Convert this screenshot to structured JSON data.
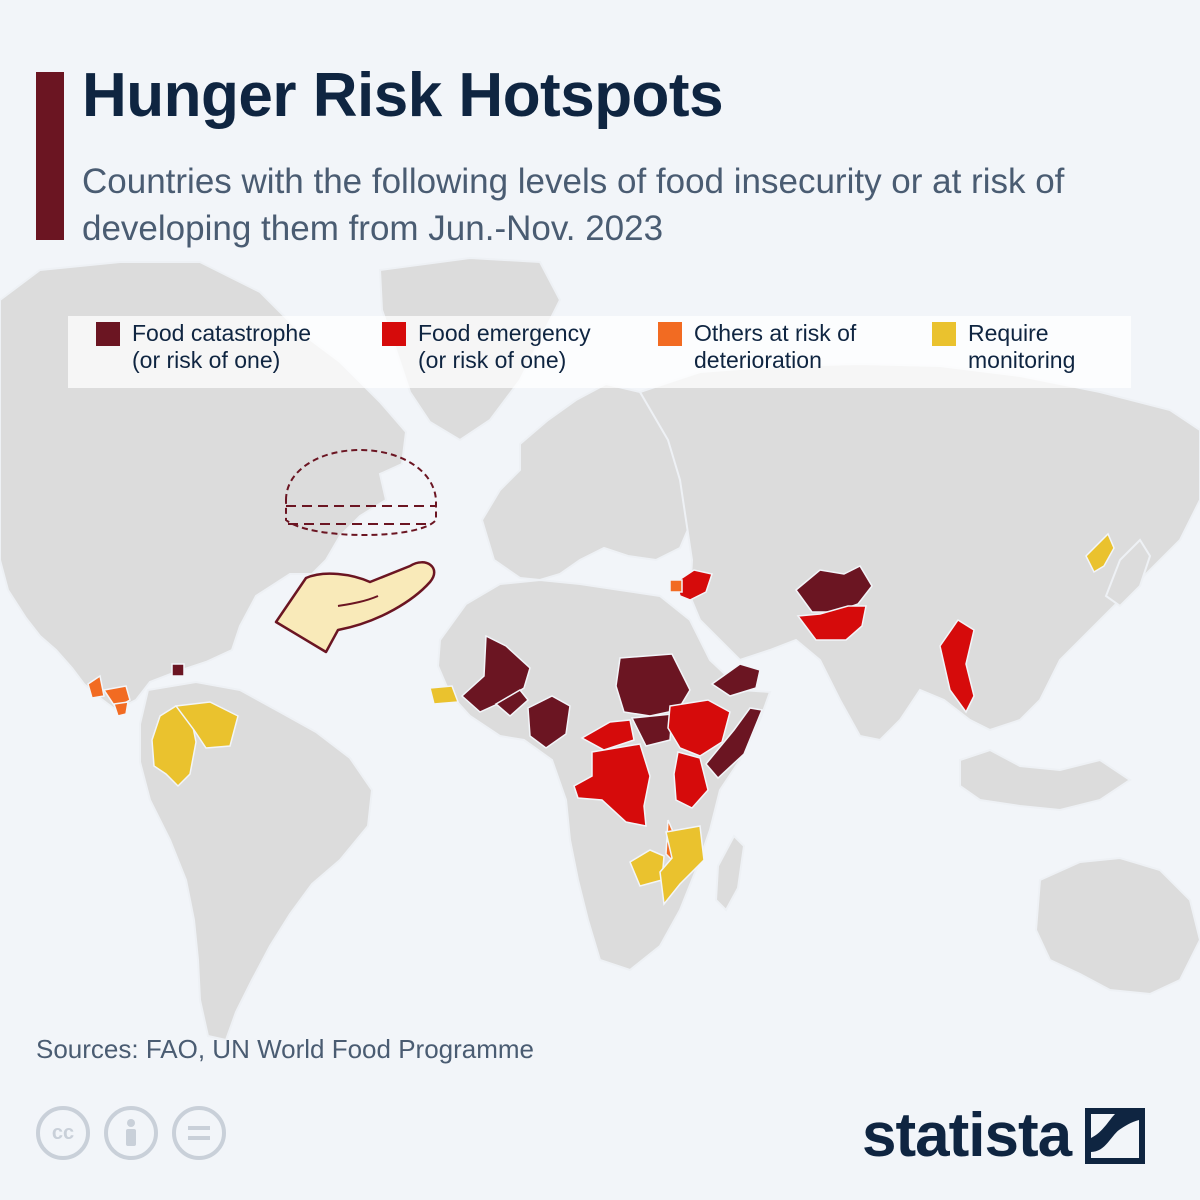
{
  "title": "Hunger Risk Hotspots",
  "subtitle": "Countries with the following levels of food insecurity or at risk of developing them from Jun.-Nov. 2023",
  "legend": [
    {
      "label": "Food catastrophe\n(or risk of one)",
      "color": "#6b1522"
    },
    {
      "label": "Food emergency\n(or risk of one)",
      "color": "#d60b0b"
    },
    {
      "label": "Others at risk of\ndeterioration",
      "color": "#f26b22"
    },
    {
      "label": "Require\nmonitoring",
      "color": "#eac22e"
    }
  ],
  "colors": {
    "land": "#dcdcdc",
    "ocean": "#f2f5f9",
    "accent": "#6b1522",
    "title": "#0f2541"
  },
  "illustration": {
    "icon": "hand-holding-bowl-icon"
  },
  "source": "Sources: FAO, UN World Food Programme",
  "license_icons": [
    "cc-icon",
    "person-icon",
    "equals-icon"
  ],
  "brand": "statista"
}
